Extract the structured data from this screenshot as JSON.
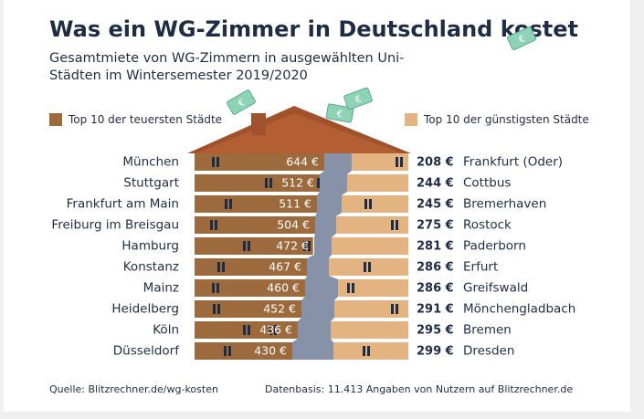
{
  "title": "Was ein WG-Zimmer in Deutschland kostet",
  "subtitle": "Gesamtmiete von WG-Zimmern in ausgewählten Uni-Städten im Wintersemester 2019/2020",
  "legend": {
    "expensive": "Top 10 der teuersten Städte",
    "cheap": "Top 10 der günstigsten Städte"
  },
  "footer": {
    "source": "Quelle: Blitzrechner.de/wg-kosten",
    "database": "Datenbasis: 11.413 Angaben von Nutzern auf Blitzrechner.de"
  },
  "colors": {
    "expensive": "#9c6a3c",
    "cheap": "#e3b382",
    "roof": "#a0522d",
    "stairs": "#8792a8",
    "text": "#1f2d44"
  },
  "icons": [
    "euro-banknote-icon",
    "chimney-icon",
    "window-icon"
  ],
  "chart_data": {
    "type": "bar",
    "unit": "€",
    "series": [
      {
        "name": "Top 10 der teuersten Städte",
        "categories": [
          "München",
          "Stuttgart",
          "Frankfurt am Main",
          "Freiburg im Breisgau",
          "Hamburg",
          "Konstanz",
          "Mainz",
          "Heidelberg",
          "Köln",
          "Düsseldorf"
        ],
        "values": [
          644,
          512,
          511,
          504,
          472,
          467,
          460,
          452,
          436,
          430
        ],
        "labels": [
          "644 €",
          "512 €",
          "511 €",
          "504 €",
          "472 €",
          "467 €",
          "460 €",
          "452 €",
          "436 €",
          "430 €"
        ]
      },
      {
        "name": "Top 10 der günstigsten Städte",
        "categories": [
          "Frankfurt (Oder)",
          "Cottbus",
          "Bremerhaven",
          "Rostock",
          "Paderborn",
          "Erfurt",
          "Greifswald",
          "Mönchengladbach",
          "Bremen",
          "Dresden"
        ],
        "values": [
          208,
          244,
          245,
          275,
          281,
          286,
          286,
          291,
          295,
          299
        ],
        "labels": [
          "208 €",
          "244 €",
          "245 €",
          "275 €",
          "281 €",
          "286 €",
          "286 €",
          "291 €",
          "295 €",
          "299 €"
        ]
      }
    ]
  }
}
